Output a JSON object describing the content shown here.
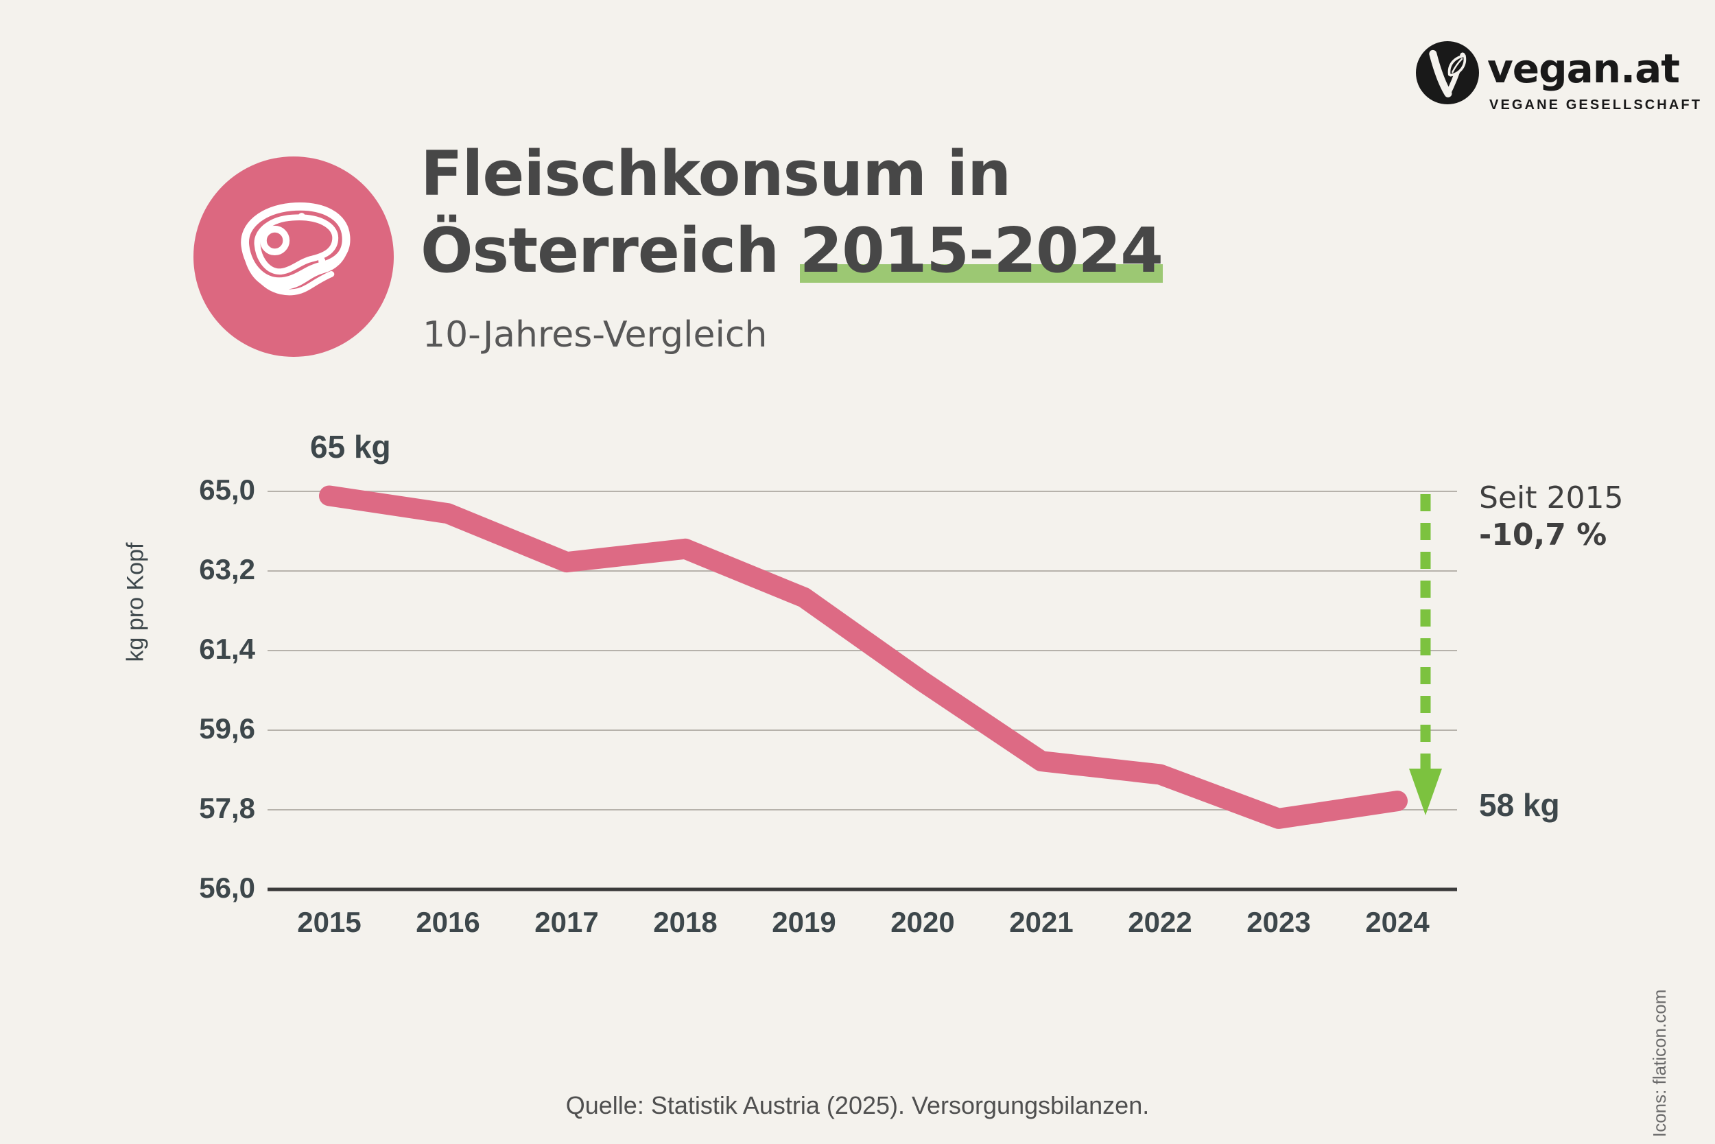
{
  "header": {
    "logo_name": "vegan.at",
    "logo_tagline": "VEGANE GESELLSCHAFT",
    "title_line1": "Fleischkonsum in",
    "title_line2_prefix": "Österreich ",
    "title_highlight": "2015-2024",
    "subtitle": "10-Jahres-Vergleich"
  },
  "chart_data": {
    "type": "line",
    "title": "Fleischkonsum in Österreich 2015-2024",
    "categories": [
      "2015",
      "2016",
      "2017",
      "2018",
      "2019",
      "2020",
      "2021",
      "2022",
      "2023",
      "2024"
    ],
    "values": [
      64.9,
      64.5,
      63.4,
      63.7,
      62.6,
      60.7,
      58.9,
      58.6,
      57.6,
      58.0
    ],
    "ylabel": "kg pro Kopf",
    "xlabel": "",
    "ylim": [
      56.0,
      65.0
    ],
    "yticks": [
      65.0,
      63.2,
      61.4,
      59.6,
      57.8,
      56.0
    ],
    "ytick_labels": [
      "65,0",
      "63,2",
      "61,4",
      "59,6",
      "57,8",
      "56,0"
    ],
    "grid": true,
    "legend": "none",
    "annotations": {
      "start_label": "65 kg",
      "end_label": "58 kg",
      "change_line1": "Seit 2015",
      "change_line2": "-10,7 %"
    }
  },
  "footer": {
    "source": "Quelle: Statistik Austria (2025). Versorgungsbilanzen.",
    "credit": "Icons: flaticon.com"
  },
  "colors": {
    "background": "#f4f2ed",
    "line_pink": "#dd6a84",
    "icon_circle_pink": "#dc6880",
    "highlight_green": "#9cc873",
    "arrow_green": "#7cc23f",
    "grid_gray": "#b6b2ab",
    "axis_dark": "#3b3b3b",
    "text_dark": "#474747",
    "tick_slate": "#3d474b"
  }
}
